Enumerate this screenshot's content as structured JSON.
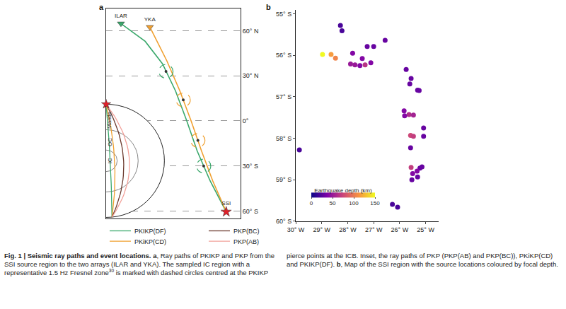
{
  "chart_data": [
    {
      "panel": "a",
      "type": "line",
      "xlim": [
        -165,
        -10
      ],
      "ylim": [
        -65,
        75
      ],
      "yticks": [
        {
          "value": 60,
          "label": "60° N"
        },
        {
          "value": 30,
          "label": "30° N"
        },
        {
          "value": 0,
          "label": "0°"
        },
        {
          "value": -30,
          "label": "30° S"
        },
        {
          "value": -60,
          "label": "60° S"
        }
      ],
      "grid": true,
      "tick_labels": "y",
      "source": {
        "name": "SSI",
        "lon": -26.5,
        "lat": -60.5
      },
      "inset_labels": [
        "IC",
        "OC",
        "Mantle"
      ],
      "series": [
        {
          "name": "PKIKP(DF)",
          "color": "#3aa86b",
          "path_lon": [
            -26.5,
            -45,
            -60,
            -72,
            -85,
            -100,
            -120,
            -147.9
          ],
          "path_lat": [
            -60.5,
            -40,
            -20,
            0,
            20,
            38,
            53,
            64.8
          ],
          "station": {
            "name": "ILAR",
            "lon": -147.9,
            "lat": 64.8
          },
          "pierce_points_lon": [
            -96,
            -52.5
          ],
          "pierce_points_lat": [
            33,
            -30
          ]
        },
        {
          "name": "PKiKP(CD)",
          "color": "#f0a030",
          "path_lon": [
            -26.5,
            -42,
            -55,
            -67,
            -80,
            -95,
            -114.6
          ],
          "path_lat": [
            -60.5,
            -40,
            -20,
            0,
            20,
            40,
            62.5
          ],
          "station": {
            "name": "YKA",
            "lon": -114.6,
            "lat": 62.5
          },
          "pierce_points_lon": [
            -76.1,
            -59.2
          ],
          "pierce_points_lat": [
            14,
            -13
          ]
        },
        {
          "name": "PKP(BC)",
          "color": "#6b3a2e"
        },
        {
          "name": "PKP(AB)",
          "color": "#f2a19a"
        }
      ]
    },
    {
      "panel": "b",
      "type": "scatter",
      "xlim": [
        -30,
        -24.5
      ],
      "xticks": [
        {
          "value": -30,
          "label": "30° W"
        },
        {
          "value": -29,
          "label": "29° W"
        },
        {
          "value": -28,
          "label": "28° W"
        },
        {
          "value": -27,
          "label": "27° W"
        },
        {
          "value": -26,
          "label": "26° W"
        },
        {
          "value": -25,
          "label": "25° W"
        }
      ],
      "ylim": [
        -60,
        -54.9
      ],
      "yticks": [
        {
          "value": -55,
          "label": "55° S"
        },
        {
          "value": -56,
          "label": "56° S"
        },
        {
          "value": -57,
          "label": "57° S"
        },
        {
          "value": -58,
          "label": "58° S"
        },
        {
          "value": -59,
          "label": "59° S"
        },
        {
          "value": -60,
          "label": "60° S"
        }
      ],
      "grid": false,
      "x": [
        -28.28,
        -28.22,
        -26.56,
        -27.25,
        -27.0,
        -28.97,
        -28.64,
        -28.47,
        -27.81,
        -27.89,
        -27.72,
        -27.53,
        -27.33,
        -27.11,
        -27.44,
        -25.75,
        -25.56,
        -25.61,
        -25.31,
        -25.25,
        -25.83,
        -25.64,
        -25.81,
        -25.47,
        -25.08,
        -25.58,
        -25.47,
        -25.08,
        -29.86,
        -25.58,
        -25.56,
        -25.14,
        -25.22,
        -25.33,
        -25.5,
        -25.53,
        -25.31,
        -26.28,
        -26.08
      ],
      "y": [
        -55.28,
        -55.41,
        -55.64,
        -55.79,
        -55.79,
        -55.98,
        -55.98,
        -56.07,
        -55.95,
        -56.21,
        -56.23,
        -56.25,
        -56.23,
        -56.18,
        -56.08,
        -56.34,
        -56.56,
        -56.69,
        -56.84,
        -56.85,
        -57.34,
        -57.43,
        -57.46,
        -57.44,
        -57.75,
        -57.93,
        -57.95,
        -57.95,
        -58.28,
        -58.23,
        -58.7,
        -58.69,
        -58.72,
        -58.79,
        -58.85,
        -59.0,
        -58.93,
        -59.59,
        -59.66
      ],
      "depth": [
        20,
        20,
        30,
        30,
        30,
        150,
        115,
        105,
        40,
        50,
        50,
        40,
        65,
        40,
        40,
        30,
        30,
        30,
        30,
        30,
        40,
        60,
        40,
        55,
        30,
        75,
        70,
        30,
        20,
        30,
        70,
        30,
        30,
        40,
        40,
        30,
        30,
        20,
        20
      ],
      "colorbar": {
        "title": "Earthquake depth (km)",
        "range": [
          0,
          150
        ],
        "ticks": [
          0,
          50,
          100,
          150
        ]
      }
    }
  ],
  "caption": {
    "title": "Fig. 1 | Seismic ray paths and event locations.",
    "a_label": "a",
    "a_text_1": ", Ray paths of PKIKP and PKP from the SSI source region to the two arrays (ILAR and YKA). The sampled IC region with a representative 1.5 Hz Fresnel zone",
    "a_ref": "30",
    "a_text_2": " is marked with dashed circles centred at the PKIKP pierce points at the ICB. Inset, the ray paths of PKP (PKP(AB) and PKP(BC)), PKiKP(CD) and PKIKP(DF). ",
    "b_label": "b",
    "b_text": ", Map of the SSI region with the source locations coloured by focal depth."
  }
}
